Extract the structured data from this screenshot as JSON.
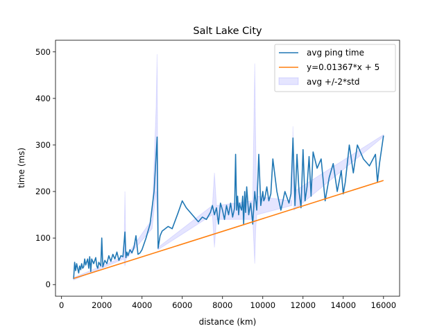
{
  "chart_data": {
    "type": "line",
    "title": "Salt Lake City",
    "xlabel": "distance (km)",
    "ylabel": "time (ms)",
    "xlim": [
      -300,
      16800
    ],
    "ylim": [
      -25,
      525
    ],
    "xticks": [
      0,
      2000,
      4000,
      6000,
      8000,
      10000,
      12000,
      14000,
      16000
    ],
    "yticks": [
      0,
      100,
      200,
      300,
      400,
      500
    ],
    "grid": false,
    "legend_position": "top-right",
    "colors": {
      "avg": "#1f77b4",
      "fit": "#ff7f0e",
      "band": "#0000ff"
    },
    "legend": [
      "avg ping time",
      "y=0.01367*x + 5",
      "avg +/-2*std"
    ],
    "series": [
      {
        "name": "avg ping time",
        "kind": "line",
        "x": [
          600,
          650,
          700,
          750,
          800,
          850,
          900,
          950,
          1000,
          1050,
          1100,
          1150,
          1200,
          1300,
          1350,
          1400,
          1450,
          1500,
          1600,
          1700,
          1750,
          1800,
          1850,
          1950,
          2000,
          2050,
          2150,
          2250,
          2350,
          2450,
          2550,
          2650,
          2750,
          2850,
          2950,
          3050,
          3150,
          3200,
          3250,
          3300,
          3400,
          3500,
          3600,
          3700,
          3800,
          3900,
          4000,
          4200,
          4400,
          4600,
          4750,
          4800,
          4900,
          5000,
          5300,
          5500,
          5800,
          6000,
          6200,
          6500,
          6800,
          7000,
          7200,
          7400,
          7500,
          7600,
          7700,
          7800,
          7900,
          8000,
          8100,
          8200,
          8300,
          8400,
          8500,
          8600,
          8650,
          8700,
          8750,
          8800,
          8850,
          8900,
          8950,
          9000,
          9050,
          9100,
          9150,
          9200,
          9300,
          9400,
          9500,
          9600,
          9700,
          9800,
          9900,
          10000,
          10050,
          10100,
          10200,
          10300,
          10400,
          10500,
          10700,
          10900,
          11100,
          11300,
          11400,
          11500,
          11600,
          11700,
          11800,
          11900,
          12000,
          12100,
          12200,
          12300,
          12400,
          12500,
          12700,
          12900,
          13100,
          13300,
          13500,
          13700,
          13900,
          14000,
          14100,
          14300,
          14500,
          14700,
          15000,
          15300,
          15600,
          15700,
          15800,
          16000
        ],
        "y": [
          12,
          48,
          30,
          45,
          35,
          25,
          40,
          32,
          45,
          35,
          38,
          55,
          42,
          55,
          35,
          60,
          28,
          55,
          45,
          58,
          40,
          35,
          48,
          40,
          100,
          38,
          52,
          45,
          62,
          50,
          65,
          55,
          70,
          52,
          62,
          60,
          113,
          58,
          70,
          62,
          75,
          68,
          80,
          105,
          65,
          68,
          75,
          100,
          130,
          200,
          317,
          78,
          105,
          115,
          125,
          120,
          155,
          180,
          165,
          150,
          135,
          145,
          140,
          155,
          170,
          150,
          165,
          130,
          175,
          160,
          140,
          170,
          150,
          175,
          145,
          165,
          280,
          160,
          190,
          150,
          175,
          165,
          160,
          190,
          130,
          200,
          155,
          210,
          150,
          175,
          130,
          200,
          160,
          280,
          170,
          200,
          180,
          185,
          210,
          180,
          195,
          270,
          200,
          160,
          200,
          175,
          195,
          315,
          170,
          280,
          200,
          165,
          290,
          180,
          210,
          275,
          190,
          285,
          250,
          270,
          180,
          230,
          260,
          200,
          245,
          195,
          220,
          300,
          240,
          300,
          270,
          255,
          280,
          220,
          260,
          320
        ]
      },
      {
        "name": "y=0.01367*x + 5",
        "kind": "line",
        "x": [
          600,
          16000
        ],
        "y": [
          13.2,
          223.7
        ]
      }
    ],
    "band": {
      "name": "avg +/-2*std",
      "x": [
        600,
        3100,
        3150,
        3200,
        4500,
        4700,
        4750,
        4800,
        7500,
        7600,
        7700,
        9500,
        9600,
        9650,
        9700,
        11450,
        11500,
        11550,
        16000
      ],
      "upper": [
        15,
        60,
        200,
        60,
        140,
        380,
        495,
        80,
        170,
        240,
        170,
        180,
        475,
        300,
        190,
        180,
        340,
        200,
        322
      ],
      "lower": [
        10,
        55,
        40,
        55,
        120,
        200,
        150,
        75,
        150,
        80,
        140,
        140,
        45,
        120,
        150,
        170,
        290,
        160,
        318
      ]
    }
  }
}
